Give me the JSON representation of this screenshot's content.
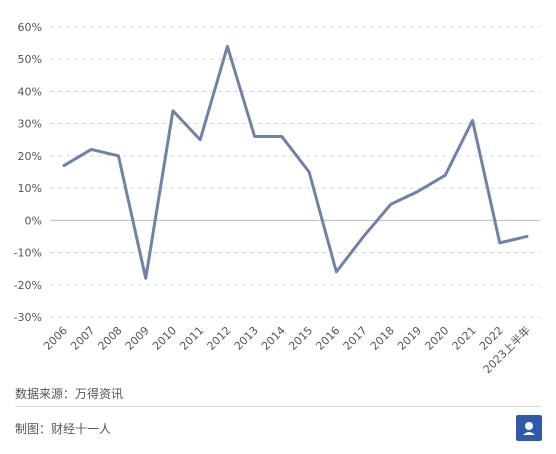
{
  "chart_data": {
    "type": "line",
    "categories": [
      "2006",
      "2007",
      "2008",
      "2009",
      "2010",
      "2011",
      "2012",
      "2013",
      "2014",
      "2015",
      "2016",
      "2017",
      "2018",
      "2019",
      "2020",
      "2021",
      "2022",
      "2023上半年"
    ],
    "series": [
      {
        "values": [
          17,
          22,
          20,
          -18,
          34,
          25,
          54,
          26,
          26,
          15,
          -16,
          -5,
          5,
          9,
          14,
          31,
          -7,
          -5
        ]
      }
    ],
    "yticks": [
      "60%",
      "50%",
      "40%",
      "30%",
      "20%",
      "10%",
      "0%",
      "-10%",
      "-20%",
      "-30%"
    ],
    "ylim": [
      -30,
      60
    ],
    "grid": true,
    "colors": {
      "line": "#6f82a8",
      "grid": "#d6d6d6"
    }
  },
  "footer": {
    "source": "数据来源：万得资讯",
    "maker": "制图：财经十一人"
  },
  "logo": {
    "icon": "caijing-logo-icon",
    "color": "#2f5aa7"
  }
}
